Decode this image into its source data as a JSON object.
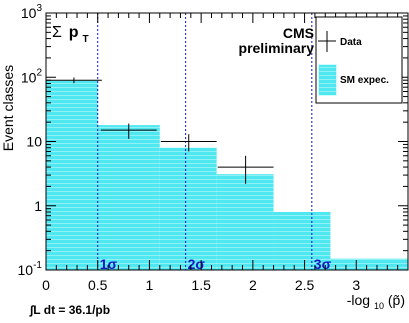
{
  "chart_data": {
    "type": "bar",
    "title_symbol": "Σ",
    "title_text": "p",
    "title_subscript": "T",
    "cms_label_line1": "CMS",
    "cms_label_line2": "preliminary",
    "xlabel_prefix": "-log",
    "xlabel_sub": "10",
    "xlabel_suffix": "(p̃)",
    "ylabel": "Event classes",
    "lumi_label": "∫L dt = 36.1/pb",
    "xlim": [
      0,
      3.5
    ],
    "ylim": [
      0.1,
      1000
    ],
    "yscale": "log",
    "x_ticks": [
      {
        "value": 0,
        "label": "0"
      },
      {
        "value": 0.5,
        "label": "0.5"
      },
      {
        "value": 1,
        "label": "1"
      },
      {
        "value": 1.5,
        "label": "1.5"
      },
      {
        "value": 2,
        "label": "2"
      },
      {
        "value": 2.5,
        "label": "2.5"
      },
      {
        "value": 3,
        "label": "3"
      }
    ],
    "y_ticks": [
      {
        "value": 0.1,
        "base": "10",
        "exp": "-1"
      },
      {
        "value": 1,
        "base": "1",
        "exp": ""
      },
      {
        "value": 10,
        "base": "10",
        "exp": ""
      },
      {
        "value": 100,
        "base": "10",
        "exp": "2"
      },
      {
        "value": 1000,
        "base": "10",
        "exp": "3"
      }
    ],
    "sm_expectation": {
      "name": "SM expec.",
      "color": "#4fe8f0",
      "bins": [
        {
          "x0": 0.0,
          "x1": 0.5,
          "value": 88
        },
        {
          "x0": 0.5,
          "x1": 1.1,
          "value": 18
        },
        {
          "x0": 1.1,
          "x1": 1.65,
          "value": 8
        },
        {
          "x0": 1.65,
          "x1": 2.2,
          "value": 3.1
        },
        {
          "x0": 2.2,
          "x1": 2.75,
          "value": 0.8
        },
        {
          "x0": 2.75,
          "x1": 3.5,
          "value": 0.15
        }
      ]
    },
    "data": {
      "name": "Data",
      "points": [
        {
          "x": 0.27,
          "xerr": 0.27,
          "y": 90,
          "ylo": 81,
          "yhi": 99
        },
        {
          "x": 0.8,
          "xerr": 0.27,
          "y": 15,
          "ylo": 11,
          "yhi": 19
        },
        {
          "x": 1.38,
          "xerr": 0.27,
          "y": 10,
          "ylo": 7,
          "yhi": 13
        },
        {
          "x": 1.93,
          "xerr": 0.27,
          "y": 4,
          "ylo": 2.2,
          "yhi": 6
        }
      ]
    },
    "sigma_lines": [
      {
        "x": 0.5,
        "label": "1σ"
      },
      {
        "x": 1.35,
        "label": "2σ"
      },
      {
        "x": 2.57,
        "label": "3σ"
      }
    ],
    "grid": false,
    "legend_position": "top-right"
  }
}
